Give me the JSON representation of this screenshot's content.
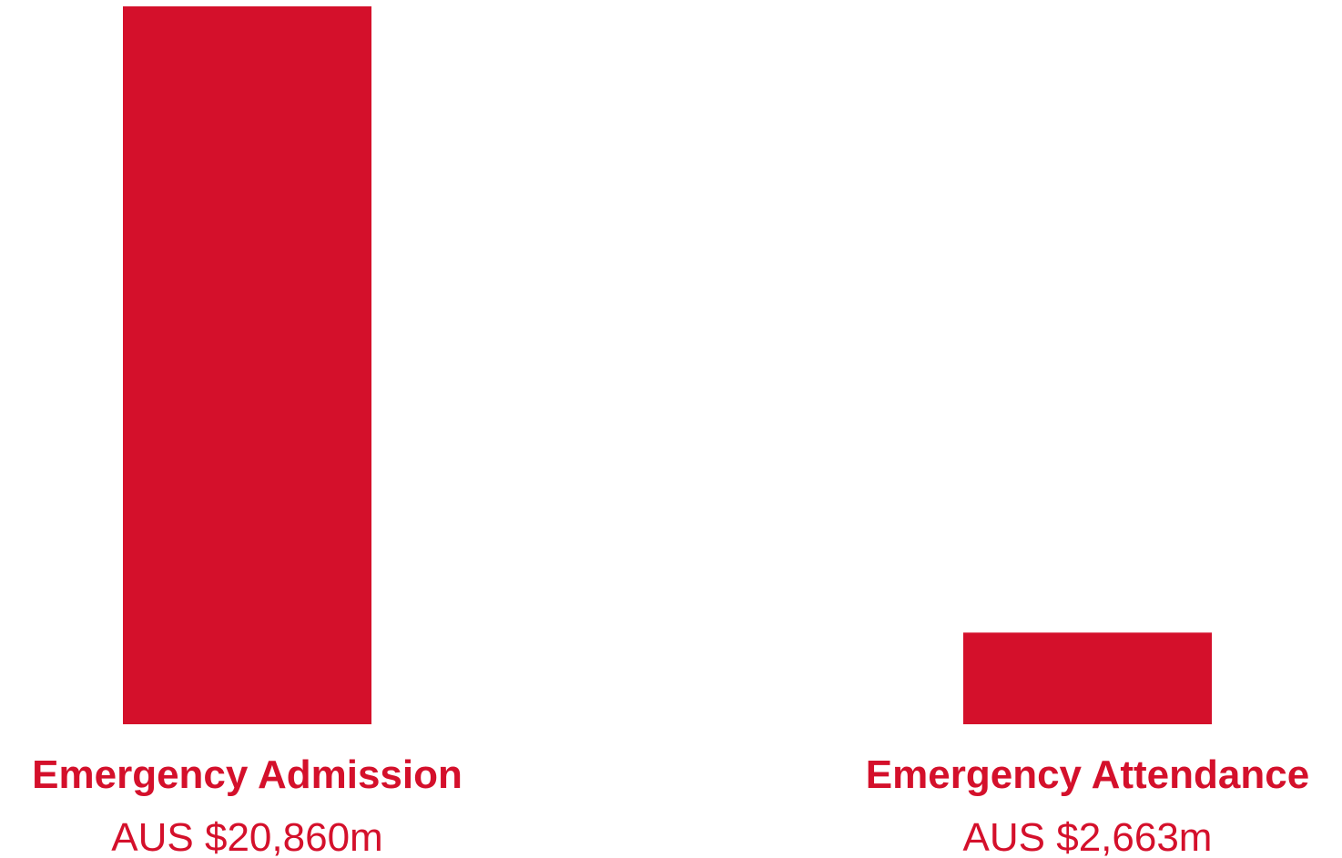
{
  "chart_data": {
    "type": "bar",
    "categories": [
      "Emergency Admission",
      "Emergency Attendance"
    ],
    "values": [
      20860,
      2663
    ],
    "value_labels": [
      "AUS $20,860m",
      "AUS $2,663m"
    ],
    "title": "",
    "xlabel": "",
    "ylabel": "",
    "ylim": [
      0,
      20860
    ],
    "grid": false,
    "bar_color": "#d4102b",
    "text_color": "#d4102b"
  }
}
